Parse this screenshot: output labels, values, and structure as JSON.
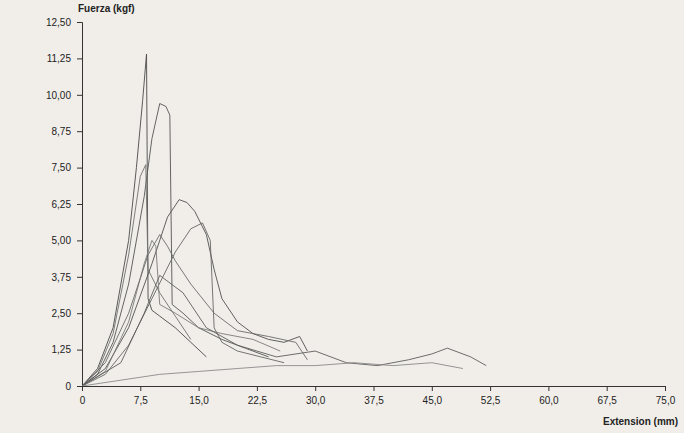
{
  "chart_data": {
    "type": "line",
    "y_label": "Fuerza (kgf)",
    "x_label": "Extension (mm)",
    "xlim": [
      0,
      75
    ],
    "ylim": [
      0,
      12.5
    ],
    "xticks": [
      0,
      {
        "value": 7.5,
        "label": "7,5"
      },
      {
        "value": 15,
        "label": "15,0"
      },
      {
        "value": 22.5,
        "label": "22,5"
      },
      {
        "value": 30,
        "label": "30,0"
      },
      {
        "value": 37.5,
        "label": "37,5"
      },
      {
        "value": 45,
        "label": "45,0"
      },
      {
        "value": 52.5,
        "label": "52,5"
      },
      {
        "value": 60,
        "label": "60,0"
      },
      {
        "value": 67.5,
        "label": "67,5"
      },
      {
        "value": 75,
        "label": "75,0"
      }
    ],
    "yticks": [
      0,
      {
        "value": 1.25,
        "label": "1,25"
      },
      {
        "value": 2.5,
        "label": "2,50"
      },
      {
        "value": 3.75,
        "label": "3,75"
      },
      {
        "value": 5,
        "label": "5,00"
      },
      {
        "value": 6.25,
        "label": "6,25"
      },
      {
        "value": 7.5,
        "label": "7,50"
      },
      {
        "value": 8.75,
        "label": "8,75"
      },
      {
        "value": 10,
        "label": "10,00"
      },
      {
        "value": 11.25,
        "label": "11,25"
      },
      {
        "value": 12.5,
        "label": "12,50"
      }
    ],
    "grid": false,
    "series": [
      {
        "color": "#4a4a4a",
        "x": [
          0,
          2,
          4,
          6,
          7,
          7.8,
          8.3,
          8.5,
          9,
          10,
          12,
          14,
          16
        ],
        "values": [
          0,
          0.6,
          2.0,
          5.0,
          7.5,
          9.8,
          11.4,
          3.0,
          2.6,
          2.4,
          2.0,
          1.5,
          1.0
        ]
      },
      {
        "color": "#555555",
        "x": [
          0,
          2,
          4,
          6,
          8,
          9,
          10,
          10.8,
          11.3,
          11.6,
          13,
          15,
          18,
          21,
          24
        ],
        "values": [
          0,
          0.4,
          1.5,
          3.5,
          6.5,
          8.5,
          9.7,
          9.6,
          9.3,
          2.8,
          2.5,
          2.0,
          1.6,
          1.3,
          1.0
        ]
      },
      {
        "color": "#707070",
        "x": [
          0,
          2,
          4,
          6,
          7.5,
          8.2,
          8.5,
          10,
          12,
          14
        ],
        "values": [
          0,
          0.5,
          1.8,
          4.5,
          7.2,
          7.6,
          4.0,
          3.2,
          2.4,
          1.6
        ]
      },
      {
        "color": "#505050",
        "x": [
          0,
          3,
          6,
          9,
          11,
          12.5,
          13.5,
          14.5,
          16,
          17,
          18,
          20,
          22,
          24,
          26,
          28,
          29
        ],
        "values": [
          0,
          0.6,
          2.0,
          4.2,
          5.8,
          6.4,
          6.3,
          6.0,
          5.2,
          4.0,
          3.0,
          2.2,
          1.8,
          1.6,
          1.5,
          1.7,
          1.2
        ]
      },
      {
        "color": "#666666",
        "x": [
          0,
          3,
          6,
          9,
          12,
          14,
          15.5,
          16.5,
          17,
          18,
          20,
          23,
          26
        ],
        "values": [
          0,
          0.4,
          1.4,
          3.0,
          4.6,
          5.4,
          5.6,
          5.0,
          2.0,
          1.5,
          1.2,
          1.0,
          0.8
        ]
      },
      {
        "color": "#7a7a7a",
        "x": [
          0,
          3,
          6,
          8,
          9,
          9.5,
          10,
          12,
          15,
          18,
          22,
          25.5
        ],
        "values": [
          0,
          0.5,
          2.2,
          4.2,
          5.0,
          4.8,
          2.8,
          2.5,
          2.0,
          1.8,
          1.6,
          1.2
        ]
      },
      {
        "color": "#5e5e5e",
        "x": [
          0,
          5,
          8,
          10,
          13,
          16,
          20,
          25,
          30,
          34,
          38,
          42,
          45,
          47,
          50,
          52
        ],
        "values": [
          0,
          0.8,
          2.5,
          3.8,
          3.2,
          2.0,
          1.4,
          1.0,
          1.2,
          0.8,
          0.7,
          0.9,
          1.1,
          1.3,
          1.0,
          0.7
        ]
      },
      {
        "color": "#8a8a8a",
        "x": [
          0,
          5,
          10,
          15,
          20,
          25,
          30,
          35,
          40,
          45,
          49
        ],
        "values": [
          0,
          0.2,
          0.4,
          0.5,
          0.6,
          0.7,
          0.7,
          0.8,
          0.7,
          0.8,
          0.6
        ]
      },
      {
        "color": "#6a6a6a",
        "x": [
          0,
          3,
          6,
          8.5,
          10,
          11,
          12,
          14,
          17,
          20,
          24,
          27.5,
          29
        ],
        "values": [
          0,
          0.8,
          2.5,
          4.5,
          5.2,
          4.8,
          4.3,
          3.5,
          2.5,
          1.9,
          1.7,
          1.5,
          0.9
        ]
      }
    ]
  }
}
